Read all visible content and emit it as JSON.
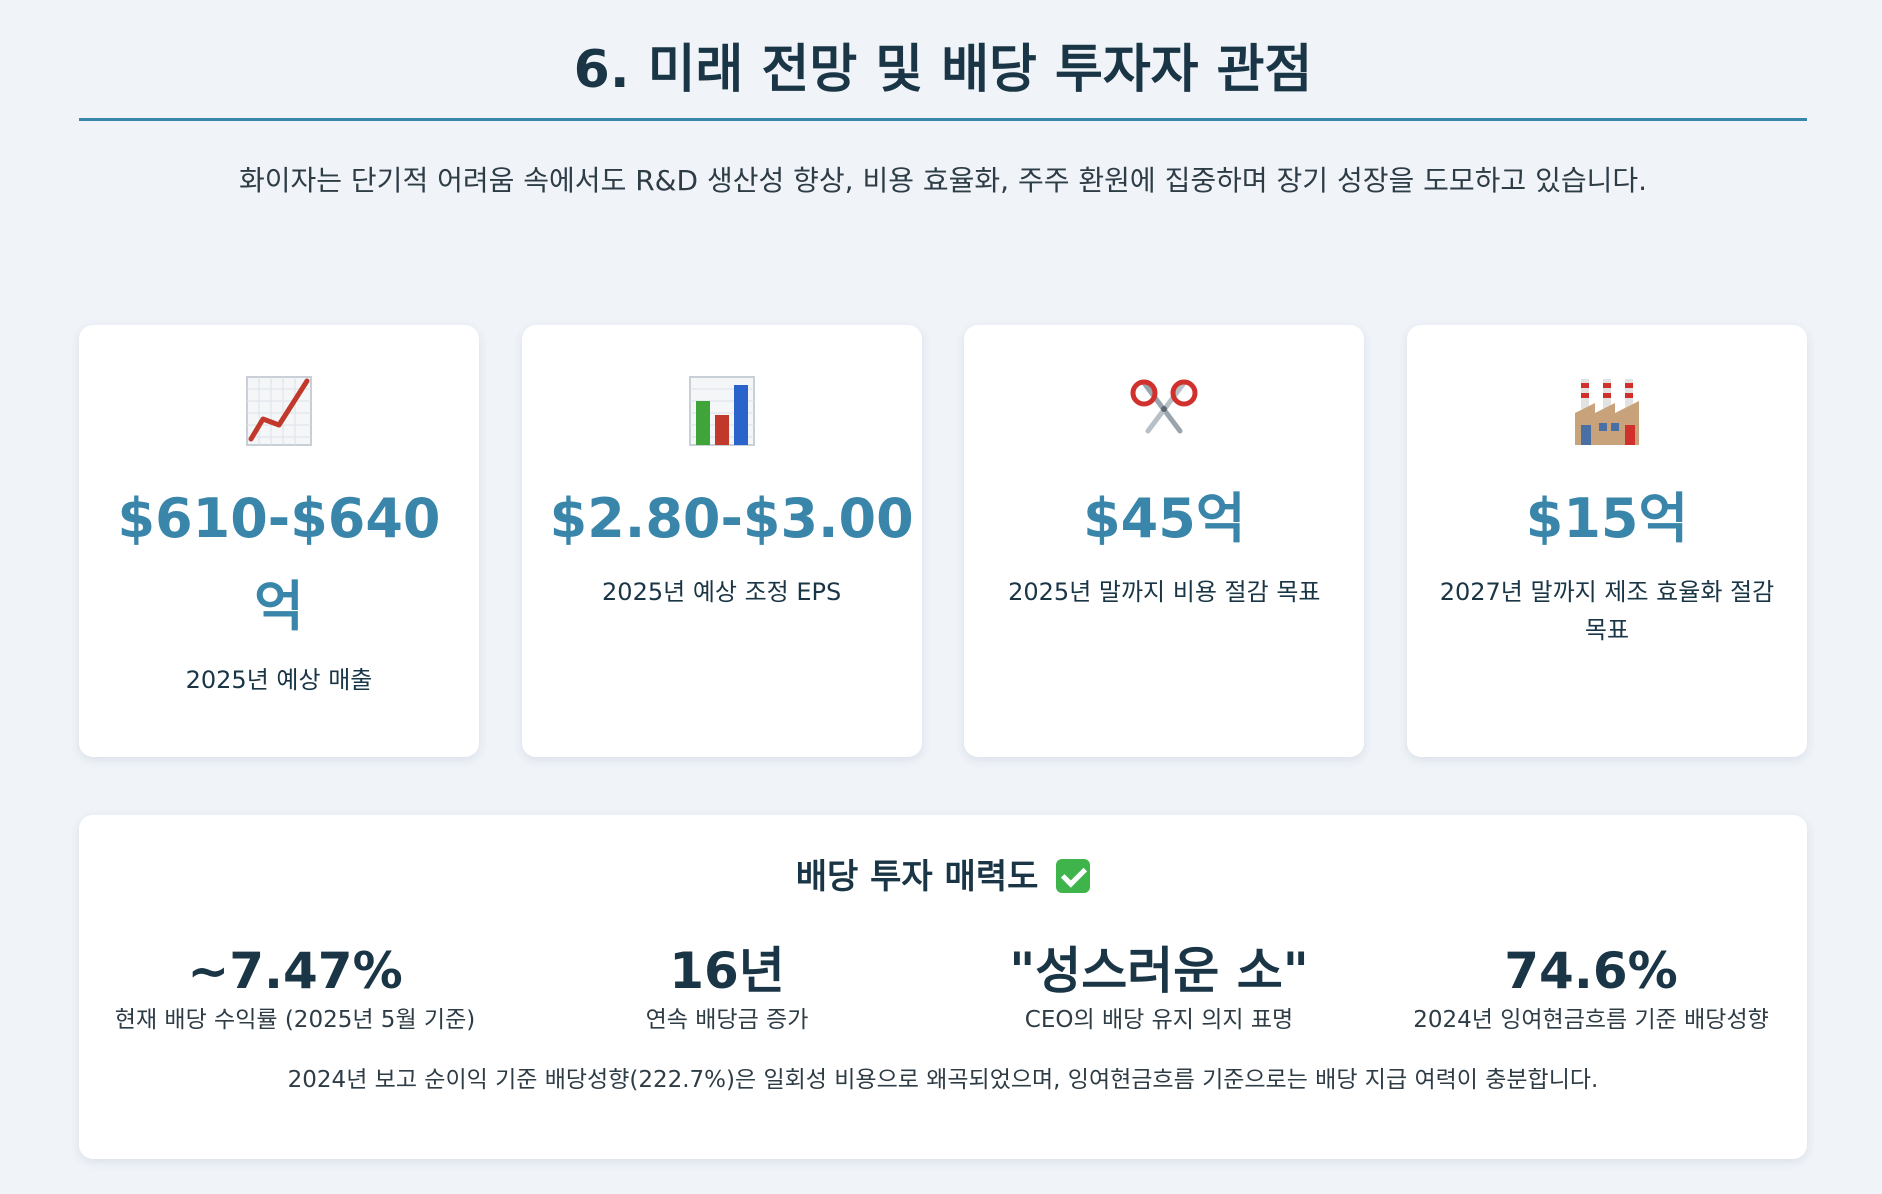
{
  "page": {
    "title": "6. 미래 전망 및 배당 투자자 관점",
    "intro": "화이자는 단기적 어려움 속에서도 R&D 생산성 향상, 비용 효율화, 주주 환원에 집중하며 장기 성장을 도모하고 있습니다."
  },
  "cards": [
    {
      "icon": "chart-increasing-icon",
      "value": "$610-$640억",
      "label": "2025년 예상 매출"
    },
    {
      "icon": "bar-chart-icon",
      "value": "$2.80-$3.00",
      "label": "2025년 예상 조정 EPS"
    },
    {
      "icon": "scissors-icon",
      "value": "$45억",
      "label": "2025년 말까지 비용 절감 목표"
    },
    {
      "icon": "factory-icon",
      "value": "$15억",
      "label": "2027년 말까지 제조 효율화 절감 목표"
    }
  ],
  "dividend": {
    "title": "배당 투자 매력도",
    "title_icon": "check-mark-button-icon",
    "metrics": [
      {
        "value": "~7.47%",
        "label": "현재 배당 수익률 (2025년 5월 기준)"
      },
      {
        "value": "16년",
        "label": "연속 배당금 증가"
      },
      {
        "value": "\"성스러운 소\"",
        "label": "CEO의 배당 유지 의지 표명"
      },
      {
        "value": "74.6%",
        "label": "2024년 잉여현금흐름 기준 배당성향"
      }
    ],
    "note": "2024년 보고 순이익 기준 배당성향(222.7%)은 일회성 비용으로 왜곡되었으며, 잉여현금흐름 기준으로는 배당 지급 여력이 충분합니다."
  },
  "colors": {
    "background": "#f0f4f9",
    "accent": "#3a86ab",
    "heading": "#1a3545",
    "card": "#ffffff"
  }
}
